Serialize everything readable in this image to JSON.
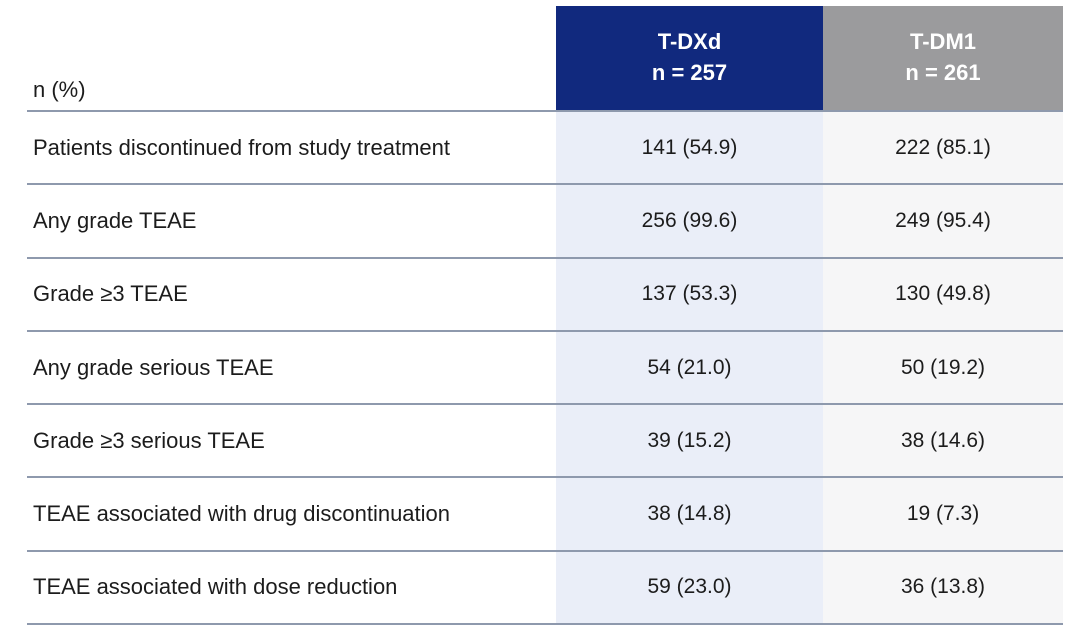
{
  "chart_data": {
    "type": "table",
    "corner_label": "n (%)",
    "column_groups": [
      {
        "name": "T-DXd",
        "n": "n = 257"
      },
      {
        "name": "T-DM1",
        "n": "n = 261"
      }
    ],
    "rows": [
      {
        "label": "Patients discontinued from study treatment",
        "t_dxd": "141 (54.9)",
        "t_dm1": "222 (85.1)"
      },
      {
        "label": "Any grade TEAE",
        "t_dxd": "256 (99.6)",
        "t_dm1": "249 (95.4)"
      },
      {
        "label": "Grade ≥3 TEAE",
        "t_dxd": "137 (53.3)",
        "t_dm1": "130 (49.8)"
      },
      {
        "label": "Any grade serious TEAE",
        "t_dxd": "54 (21.0)",
        "t_dm1": "50 (19.2)"
      },
      {
        "label": "Grade ≥3 serious TEAE",
        "t_dxd": "39 (15.2)",
        "t_dm1": "38 (14.6)"
      },
      {
        "label": "TEAE associated with drug discontinuation",
        "t_dxd": "38 (14.8)",
        "t_dm1": "19 (7.3)"
      },
      {
        "label": "TEAE associated with dose reduction",
        "t_dxd": "59 (23.0)",
        "t_dm1": "36 (13.8)"
      }
    ]
  },
  "colors": {
    "tdxd_header_bg": "#11297E",
    "tdm1_header_bg": "#9B9B9D",
    "tdxd_body_bg": "#EAEEF8",
    "tdm1_body_bg": "#F6F6F7",
    "separator": "#8E99AD",
    "header_text": "#FFFFFF",
    "body_text": "#1C1C1C",
    "page_bg": "#FFFFFF"
  }
}
